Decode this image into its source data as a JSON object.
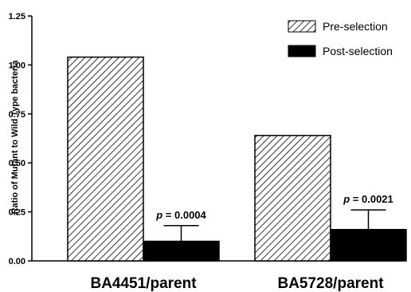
{
  "chart_data": {
    "type": "bar",
    "title": "",
    "xlabel": "",
    "ylabel": "Ratio of Mutant to Wild Type bacteria",
    "ylim": [
      0,
      1.25
    ],
    "yticks": [
      "0.00",
      "0.25",
      "0.50",
      "0.75",
      "1.00",
      "1.25"
    ],
    "categories": [
      "BA4451/parent",
      "BA5728/parent"
    ],
    "series": [
      {
        "name": "Pre-selection",
        "pattern": "diagonal-hatch",
        "values": [
          1.04,
          0.64
        ],
        "errors": [
          null,
          null
        ]
      },
      {
        "name": "Post-selection",
        "color": "#000000",
        "values": [
          0.1,
          0.16
        ],
        "errors": [
          0.08,
          0.1
        ]
      }
    ],
    "annotations": [
      "p = 0.0004",
      "p = 0.0021"
    ],
    "legend_position": "top-right",
    "grid": false
  }
}
